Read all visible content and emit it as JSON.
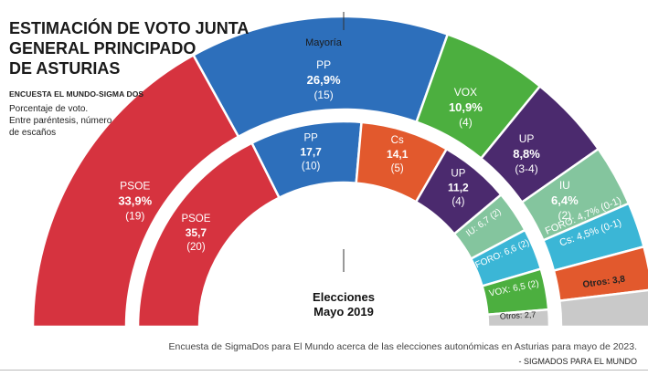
{
  "title_lines": [
    "ESTIMACIÓN DE VOTO JUNTA",
    "GENERAL PRINCIPADO",
    "DE ASTURIAS"
  ],
  "source_label": "ENCUESTA EL MUNDO-SIGMA DOS",
  "notes": [
    "Porcentaje de voto.",
    "Entre paréntesis, número",
    "de escaños"
  ],
  "majority_label": "Mayoría",
  "caption": "Encuesta de SigmaDos para El Mundo acerca de las elecciones autonómicas en Asturias para mayo de 2023.",
  "credit": "- SIGMADOS PARA EL MUNDO",
  "chart_data": {
    "type": "pie",
    "title": "ESTIMACIÓN DE VOTO JUNTA GENERAL PRINCIPADO DE ASTURIAS",
    "rings": [
      {
        "name": "Estimación",
        "slices": [
          {
            "party": "PSOE",
            "value": 33.9,
            "value_label": "33,9%",
            "seats": "(19)",
            "color": "#d6333f"
          },
          {
            "party": "PP",
            "value": 26.9,
            "value_label": "26,9%",
            "seats": "(15)",
            "color": "#2d6fbb"
          },
          {
            "party": "VOX",
            "value": 10.9,
            "value_label": "10,9%",
            "seats": "(4)",
            "color": "#4caf3f"
          },
          {
            "party": "UP",
            "value": 8.8,
            "value_label": "8,8%",
            "seats": "(3-4)",
            "color": "#4b2a6e"
          },
          {
            "party": "IU",
            "value": 6.4,
            "value_label": "6,4%",
            "seats": "(2)",
            "color": "#84c59e"
          },
          {
            "party": "FORO",
            "value": 4.7,
            "value_label": "4,7%",
            "seats": "(0-1)",
            "color": "#3bb6d6"
          },
          {
            "party": "Cs",
            "value": 4.5,
            "value_label": "4,5%",
            "seats": "(0-1)",
            "color": "#e2592d"
          },
          {
            "party": "Otros",
            "value": 3.8,
            "value_label": "3,8",
            "seats": "",
            "color": "#c9c9c9"
          }
        ]
      },
      {
        "name": "Elecciones Mayo 2019",
        "center_label": [
          "Elecciones",
          "Mayo 2019"
        ],
        "slices": [
          {
            "party": "PSOE",
            "value": 35.7,
            "value_label": "35,7",
            "seats": "(20)",
            "color": "#d6333f"
          },
          {
            "party": "PP",
            "value": 17.7,
            "value_label": "17,7",
            "seats": "(10)",
            "color": "#2d6fbb"
          },
          {
            "party": "Cs",
            "value": 14.1,
            "value_label": "14,1",
            "seats": "(5)",
            "color": "#e2592d"
          },
          {
            "party": "UP",
            "value": 11.2,
            "value_label": "11,2",
            "seats": "(4)",
            "color": "#4b2a6e"
          },
          {
            "party": "IU",
            "value": 6.7,
            "value_label": "6,7",
            "seats": "(2)",
            "color": "#84c59e"
          },
          {
            "party": "FORO",
            "value": 6.6,
            "value_label": "6,6",
            "seats": "(2)",
            "color": "#3bb6d6"
          },
          {
            "party": "VOX",
            "value": 6.5,
            "value_label": "6,5",
            "seats": "(2)",
            "color": "#4caf3f"
          },
          {
            "party": "Otros",
            "value": 2.7,
            "value_label": "2,7",
            "seats": "",
            "color": "#c9c9c9"
          }
        ]
      }
    ]
  }
}
